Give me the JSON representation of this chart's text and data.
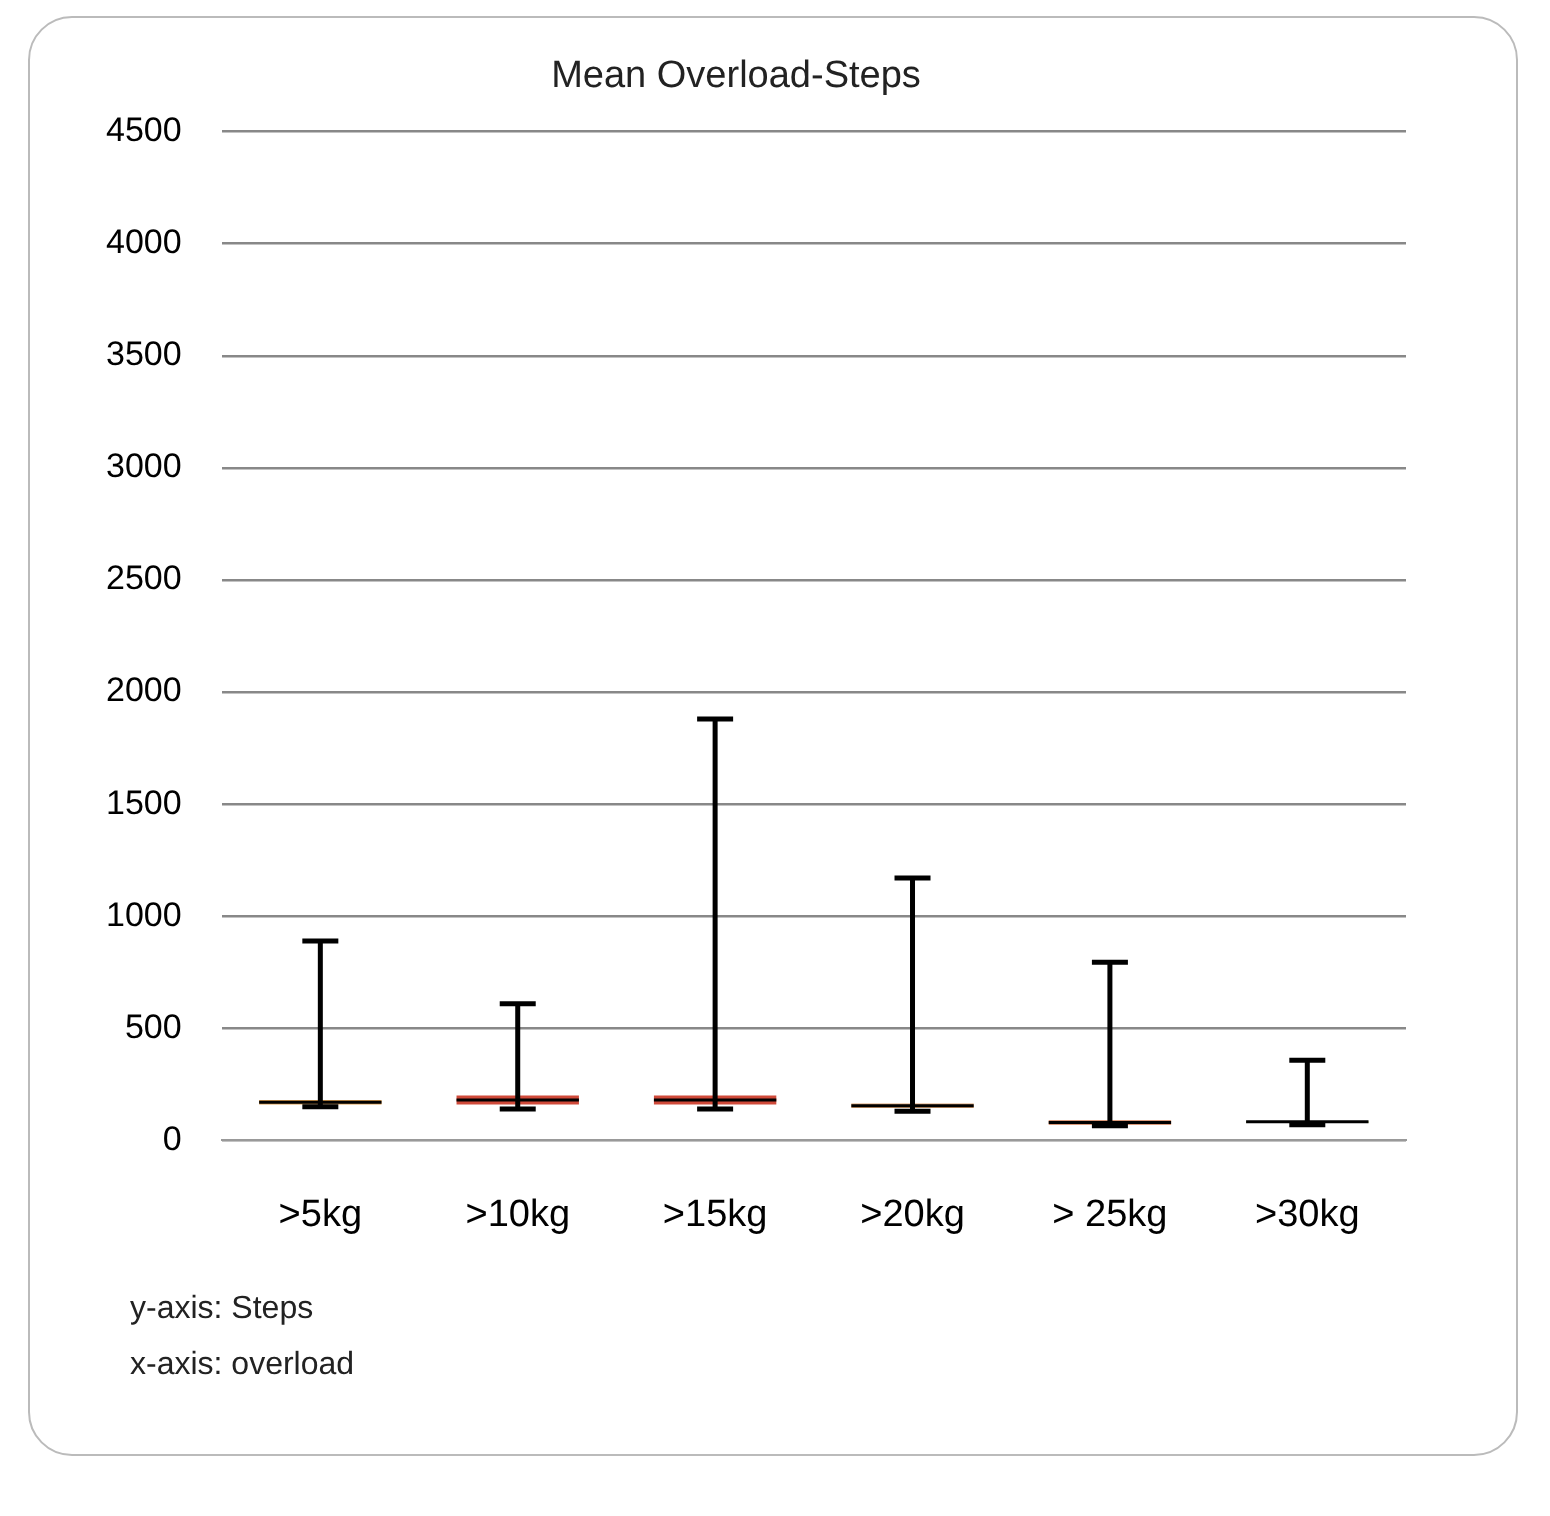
{
  "chart_data": {
    "type": "box",
    "title": "Mean Overload-Steps",
    "categories": [
      ">5kg",
      ">10kg",
      ">15kg",
      ">20kg",
      "> 25kg",
      ">30kg"
    ],
    "boxes": [
      {
        "low": 150,
        "q1": 160,
        "median": 170,
        "q3": 180,
        "high": 890
      },
      {
        "low": 140,
        "q1": 160,
        "median": 180,
        "q3": 200,
        "high": 610
      },
      {
        "low": 140,
        "q1": 160,
        "median": 180,
        "q3": 200,
        "high": 1880
      },
      {
        "low": 130,
        "q1": 145,
        "median": 155,
        "q3": 165,
        "high": 1170
      },
      {
        "low": 65,
        "q1": 70,
        "median": 80,
        "q3": 90,
        "high": 795
      },
      {
        "low": 70,
        "q1": 80,
        "median": 83,
        "q3": 86,
        "high": 357
      }
    ],
    "colors": [
      "#e0a050",
      "#d04a3a",
      "#d04a3a",
      "#d9a070",
      "#d07a50",
      "#c8dc78"
    ],
    "ylim": [
      0,
      4500
    ],
    "yticks": [
      0,
      500,
      1000,
      1500,
      2000,
      2500,
      3000,
      3500,
      4000,
      4500
    ],
    "grid": "y",
    "legend": false,
    "annotations": [
      "y-axis: Steps",
      "x-axis: overload"
    ]
  }
}
